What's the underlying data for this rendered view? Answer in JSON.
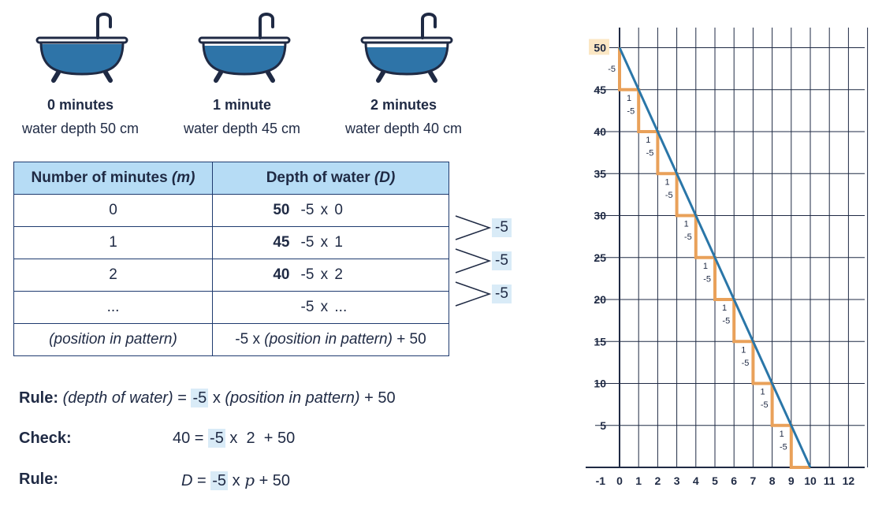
{
  "bathtubs": [
    {
      "minutes": "0 minutes",
      "depth": "water depth 50 cm",
      "fill": 0.5
    },
    {
      "minutes": "1 minute",
      "depth": "water depth 45 cm",
      "fill": 0.45
    },
    {
      "minutes": "2 minutes",
      "depth": "water depth 40 cm",
      "fill": 0.4
    }
  ],
  "table": {
    "header_m": "Number of minutes",
    "header_m_var": "(m)",
    "header_d": "Depth of water",
    "header_d_var": "(D)",
    "rows": [
      {
        "m": "0",
        "depth": "50",
        "op": "-5",
        "x": "x",
        "n": "0"
      },
      {
        "m": "1",
        "depth": "45",
        "op": "-5",
        "x": "x",
        "n": "1"
      },
      {
        "m": "2",
        "depth": "40",
        "op": "-5",
        "x": "x",
        "n": "2"
      },
      {
        "m": "...",
        "depth": "",
        "op": "-5",
        "x": "x",
        "n": "..."
      }
    ],
    "last_m": "(position in pattern)",
    "last_d_pre": "-5 x",
    "last_d_it": "(position in pattern)",
    "last_d_post": "+ 50"
  },
  "differences": [
    "-5",
    "-5",
    "-5"
  ],
  "rules": {
    "rule_label": "Rule:",
    "rule_it1": "(depth of water)",
    "rule_eq": "=",
    "rule_hl": "-5",
    "rule_x": "x",
    "rule_it2": "(position in pattern)",
    "rule_plus": "+ 50",
    "check_label": "Check:",
    "check_lhs": "40 =",
    "check_hl": "-5",
    "check_rest": "x  2  + 50",
    "rule2_label": "Rule:",
    "rule2_d": "D",
    "rule2_eq": "=",
    "rule2_hl": "-5",
    "rule2_x": "x",
    "rule2_p": "p",
    "rule2_plus": "+ 50"
  },
  "chart_data": {
    "type": "line",
    "x_ticks": [
      "-1",
      "0",
      "1",
      "2",
      "3",
      "4",
      "5",
      "6",
      "7",
      "8",
      "9",
      "10",
      "11",
      "12"
    ],
    "y_ticks": [
      "5",
      "10",
      "15",
      "20",
      "25",
      "30",
      "35",
      "40",
      "45",
      "50"
    ],
    "xlim": [
      -1,
      12.5
    ],
    "ylim": [
      0,
      52
    ],
    "series": [
      {
        "x": [
          0,
          10
        ],
        "y": [
          50,
          0
        ]
      }
    ],
    "steps": {
      "run_label": "1",
      "rise_label": "-5",
      "count": 10
    },
    "highlight_tick": "50",
    "colors": {
      "line": "#2a76a8",
      "steps": "#e9a15a",
      "grid": "#1f2a44",
      "highlight": "#fbe7c4"
    }
  }
}
